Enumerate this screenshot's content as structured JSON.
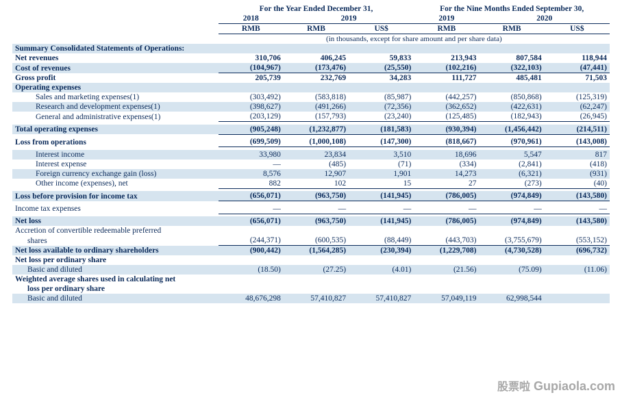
{
  "header": {
    "group1": "For the Year Ended December 31,",
    "group2": "For the Nine Months Ended September 30,",
    "y2018": "2018",
    "y2019a": "2019",
    "y2019b": "2019",
    "y2020": "2020",
    "c_rmb": "RMB",
    "c_uss": "US$",
    "footnote": "(in thousands, except for share amount and per share data)"
  },
  "labels": {
    "summary": "Summary Consolidated Statements of Operations:",
    "net_rev": "Net revenues",
    "cost_rev": "Cost of revenues",
    "gross": "Gross profit",
    "opex_hdr": "Operating expenses",
    "sm": "Sales and marketing expenses(1)",
    "rd": "Research and development expenses(1)",
    "ga": "General and administrative expenses(1)",
    "total_opex": "Total operating expenses",
    "loss_ops": "Loss from operations",
    "int_inc": "Interest income",
    "int_exp": "Interest expense",
    "fx": "Foreign currency exchange gain (loss)",
    "other": "Other income (expenses), net",
    "loss_pretax": "Loss before provision for income tax",
    "tax": "Income tax expenses",
    "net_loss": "Net loss",
    "accretion1": "Accretion of convertible redeemable preferred",
    "accretion2": "shares",
    "nlavail": "Net loss available to ordinary shareholders",
    "nlper": "Net loss per ordinary share",
    "basic": "Basic and diluted",
    "wavg1": "Weighted average shares used in calculating net",
    "wavg2": "loss per ordinary share",
    "basic2": "Basic and diluted"
  },
  "rows": {
    "net_rev": [
      "310,706",
      "406,245",
      "59,833",
      "213,943",
      "807,584",
      "118,944"
    ],
    "cost_rev": [
      "(104,967)",
      "(173,476)",
      "(25,550)",
      "(102,216)",
      "(322,103)",
      "(47,441)"
    ],
    "gross": [
      "205,739",
      "232,769",
      "34,283",
      "111,727",
      "485,481",
      "71,503"
    ],
    "sm": [
      "(303,492)",
      "(583,818)",
      "(85,987)",
      "(442,257)",
      "(850,868)",
      "(125,319)"
    ],
    "rd": [
      "(398,627)",
      "(491,266)",
      "(72,356)",
      "(362,652)",
      "(422,631)",
      "(62,247)"
    ],
    "ga": [
      "(203,129)",
      "(157,793)",
      "(23,240)",
      "(125,485)",
      "(182,943)",
      "(26,945)"
    ],
    "total_opex": [
      "(905,248)",
      "(1,232,877)",
      "(181,583)",
      "(930,394)",
      "(1,456,442)",
      "(214,511)"
    ],
    "loss_ops": [
      "(699,509)",
      "(1,000,108)",
      "(147,300)",
      "(818,667)",
      "(970,961)",
      "(143,008)"
    ],
    "int_inc": [
      "33,980",
      "23,834",
      "3,510",
      "18,696",
      "5,547",
      "817"
    ],
    "int_exp": [
      "—",
      "(485)",
      "(71)",
      "(334)",
      "(2,841)",
      "(418)"
    ],
    "fx": [
      "8,576",
      "12,907",
      "1,901",
      "14,273",
      "(6,321)",
      "(931)"
    ],
    "other": [
      "882",
      "102",
      "15",
      "27",
      "(273)",
      "(40)"
    ],
    "loss_pretax": [
      "(656,071)",
      "(963,750)",
      "(141,945)",
      "(786,005)",
      "(974,849)",
      "(143,580)"
    ],
    "tax": [
      "—",
      "—",
      "—",
      "—",
      "—",
      "—"
    ],
    "net_loss": [
      "(656,071)",
      "(963,750)",
      "(141,945)",
      "(786,005)",
      "(974,849)",
      "(143,580)"
    ],
    "accretion": [
      "(244,371)",
      "(600,535)",
      "(88,449)",
      "(443,703)",
      "(3,755,679)",
      "(553,152)"
    ],
    "nlavail": [
      "(900,442)",
      "(1,564,285)",
      "(230,394)",
      "(1,229,708)",
      "(4,730,528)",
      "(696,732)"
    ],
    "basic": [
      "(18.50)",
      "(27.25)",
      "(4.01)",
      "(21.56)",
      "(75.09)",
      "(11.06)"
    ],
    "basic2": [
      "48,676,298",
      "57,410,827",
      "57,410,827",
      "57,049,119",
      "62,998,544",
      ""
    ]
  },
  "watermark": {
    "cn": "股票啦",
    "en": " Gupiaola.com"
  }
}
